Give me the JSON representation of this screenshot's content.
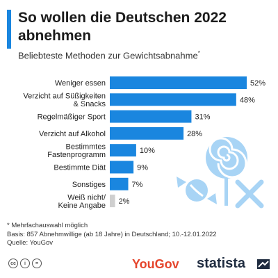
{
  "title": "So wollen die Deutschen 2022 abnehmen",
  "subtitle": "Beliebteste Methoden zur Gewichtsabnahme",
  "subtitle_marker": "*",
  "footnotes": [
    "* Mehrfachauswahl möglich",
    "Basis: 857 Abnehmwillige (ab 18 Jahre) in Deutschland; 10.-12.01.2022",
    "Quelle: YouGov"
  ],
  "brand": {
    "yougov": "YouGov",
    "statista": "statista"
  },
  "colors": {
    "bar": "#1a86df",
    "bar_muted": "#cfcfcf",
    "accent": "#1a86df",
    "yougov": "#e5452c",
    "statista": "#1f2c40",
    "illustration": "#9fd0f5"
  },
  "chart_data": {
    "type": "bar",
    "orientation": "horizontal",
    "categories": [
      [
        "Weniger essen"
      ],
      [
        "Verzicht auf Süßigkeiten",
        "& Snacks"
      ],
      [
        "Regelmäßiger Sport"
      ],
      [
        "Verzicht auf Alkohol"
      ],
      [
        "Bestimmtes",
        "Fastenprogramm"
      ],
      [
        "Bestimmte Diät"
      ],
      [
        "Sonstiges"
      ],
      [
        "Weiß nicht/",
        "Keine Angabe"
      ]
    ],
    "values": [
      52,
      48,
      31,
      28,
      10,
      9,
      7,
      2
    ],
    "value_labels": [
      "52%",
      "48%",
      "31%",
      "28%",
      "10%",
      "9%",
      "7%",
      "2%"
    ],
    "unit": "%",
    "muted_categories": [
      7
    ],
    "xlim": [
      0,
      52
    ],
    "grid": false
  }
}
